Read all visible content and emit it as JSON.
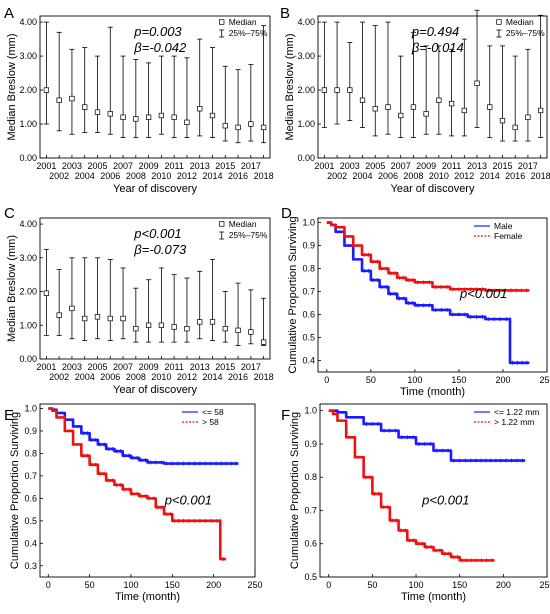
{
  "chart_data": [
    {
      "panel": "A",
      "type": "box-errorbar",
      "ylabel": "Median Breslow (mm)",
      "xlabel": "Year of discovery",
      "ylim": [
        0,
        4.0
      ],
      "yticks": [
        "0.00",
        "1.00",
        "2.00",
        "3.00",
        "4.00"
      ],
      "categories": [
        "2001",
        "2002",
        "2003",
        "2004",
        "2005",
        "2006",
        "2007",
        "2008",
        "2009",
        "2010",
        "2011",
        "2012",
        "2013",
        "2014",
        "2015",
        "2016",
        "2017",
        "2018"
      ],
      "median": [
        2.0,
        1.7,
        1.75,
        1.5,
        1.35,
        1.3,
        1.2,
        1.15,
        1.2,
        1.25,
        1.2,
        1.05,
        1.45,
        1.25,
        0.95,
        0.9,
        1.0,
        0.9
      ],
      "q25": [
        1.0,
        0.8,
        0.7,
        0.75,
        0.75,
        0.7,
        0.6,
        0.6,
        0.6,
        0.7,
        0.6,
        0.6,
        0.65,
        0.6,
        0.5,
        0.45,
        0.5,
        0.45
      ],
      "q75": [
        4.0,
        3.7,
        3.2,
        3.25,
        3.0,
        3.85,
        3.0,
        2.9,
        2.8,
        3.0,
        3.0,
        2.95,
        3.5,
        3.25,
        2.7,
        2.6,
        2.75,
        3.9
      ],
      "stats": [
        "p=0.003",
        "β=-0.042"
      ],
      "legend": [
        "Median",
        "25%–75%"
      ]
    },
    {
      "panel": "B",
      "type": "box-errorbar",
      "ylabel": "Median Breslow (mm)",
      "xlabel": "Year of discovery",
      "ylim": [
        0,
        4.0
      ],
      "yticks": [
        "0.00",
        "1.00",
        "2.00",
        "3.00",
        "4.00"
      ],
      "categories": [
        "2001",
        "2002",
        "2003",
        "2004",
        "2005",
        "2006",
        "2007",
        "2008",
        "2009",
        "2010",
        "2011",
        "2012",
        "2013",
        "2014",
        "2015",
        "2016",
        "2017",
        "2018"
      ],
      "median": [
        2.0,
        2.0,
        2.0,
        1.7,
        1.45,
        1.5,
        1.25,
        1.5,
        1.3,
        1.7,
        1.6,
        1.4,
        2.2,
        1.5,
        1.1,
        0.9,
        1.2,
        1.4
      ],
      "q25": [
        0.9,
        1.0,
        1.1,
        0.9,
        0.65,
        0.7,
        0.6,
        0.6,
        0.7,
        0.7,
        0.65,
        0.65,
        0.9,
        0.6,
        0.5,
        0.5,
        0.5,
        0.6
      ],
      "q75": [
        4.0,
        4.0,
        3.4,
        4.0,
        3.9,
        4.0,
        3.0,
        3.7,
        3.3,
        3.3,
        3.2,
        3.5,
        4.35,
        3.3,
        3.3,
        3.0,
        3.2,
        4.2
      ],
      "stats": [
        "p=0.494",
        "β=-0.014"
      ],
      "legend": [
        "Median",
        "25%–75%"
      ]
    },
    {
      "panel": "C",
      "type": "box-errorbar",
      "ylabel": "Median Breslow (mm)",
      "xlabel": "Year of discovery",
      "ylim": [
        0,
        4.0
      ],
      "yticks": [
        "0.00",
        "1.00",
        "2.00",
        "3.00",
        "4.00"
      ],
      "categories": [
        "2001",
        "2002",
        "2003",
        "2004",
        "2005",
        "2006",
        "2007",
        "2008",
        "2009",
        "2010",
        "2011",
        "2012",
        "2013",
        "2014",
        "2015",
        "2016",
        "2017",
        "2018"
      ],
      "median": [
        1.95,
        1.3,
        1.5,
        1.2,
        1.25,
        1.2,
        1.2,
        0.9,
        1.0,
        1.0,
        0.95,
        0.9,
        1.1,
        1.1,
        0.9,
        0.85,
        0.8,
        0.5
      ],
      "q25": [
        0.7,
        0.7,
        0.6,
        0.55,
        0.6,
        0.55,
        0.6,
        0.5,
        0.5,
        0.5,
        0.5,
        0.5,
        0.6,
        0.55,
        0.5,
        0.4,
        0.45,
        0.4
      ],
      "q75": [
        3.25,
        2.65,
        3.0,
        3.0,
        3.0,
        2.95,
        2.7,
        2.1,
        2.35,
        2.7,
        2.5,
        2.4,
        2.6,
        2.95,
        2.0,
        2.25,
        2.05,
        1.8
      ],
      "stats": [
        "p<0.001",
        "β=-0.073"
      ],
      "legend": [
        "Median",
        "25%–75%"
      ]
    },
    {
      "panel": "D",
      "type": "line",
      "ylabel": "Cumulative Proportion Surviving",
      "xlabel": "Time (month)",
      "xlim": [
        -10,
        250
      ],
      "ylim": [
        0.35,
        1.02
      ],
      "xticks": [
        "0",
        "50",
        "100",
        "150",
        "200",
        "250"
      ],
      "yticks": [
        "0.4",
        "0.5",
        "0.6",
        "0.7",
        "0.8",
        "0.9",
        "1.0"
      ],
      "stats": [
        "p<0.001"
      ],
      "series": [
        {
          "name": "Male",
          "color": "#1a1aff",
          "x": [
            0,
            5,
            10,
            20,
            30,
            40,
            50,
            60,
            70,
            80,
            90,
            100,
            120,
            140,
            160,
            180,
            200,
            208,
            208,
            230
          ],
          "y": [
            1.0,
            0.99,
            0.96,
            0.9,
            0.84,
            0.79,
            0.75,
            0.72,
            0.69,
            0.67,
            0.65,
            0.64,
            0.62,
            0.6,
            0.59,
            0.58,
            0.58,
            0.58,
            0.39,
            0.39
          ]
        },
        {
          "name": "Female",
          "color": "#ee1111",
          "x": [
            0,
            5,
            10,
            20,
            30,
            40,
            50,
            60,
            70,
            80,
            90,
            100,
            120,
            140,
            160,
            180,
            200,
            230
          ],
          "y": [
            1.0,
            0.99,
            0.98,
            0.94,
            0.9,
            0.86,
            0.83,
            0.8,
            0.78,
            0.76,
            0.75,
            0.74,
            0.72,
            0.71,
            0.71,
            0.705,
            0.705,
            0.705
          ]
        }
      ]
    },
    {
      "panel": "E",
      "type": "line",
      "ylabel": "Cumulative Proportion Surviving",
      "xlabel": "Time (month)",
      "xlim": [
        -10,
        250
      ],
      "ylim": [
        0.25,
        1.02
      ],
      "xticks": [
        "0",
        "50",
        "100",
        "150",
        "200",
        "250"
      ],
      "yticks": [
        "0.3",
        "0.4",
        "0.5",
        "0.6",
        "0.7",
        "0.8",
        "0.9",
        "1.0"
      ],
      "stats": [
        "p<0.001"
      ],
      "series": [
        {
          "name": "<= 58",
          "color": "#1a1aff",
          "x": [
            0,
            5,
            10,
            20,
            30,
            40,
            50,
            60,
            70,
            80,
            90,
            100,
            110,
            120,
            140,
            160,
            180,
            200,
            230
          ],
          "y": [
            1.0,
            0.995,
            0.98,
            0.95,
            0.92,
            0.89,
            0.86,
            0.84,
            0.82,
            0.81,
            0.79,
            0.78,
            0.77,
            0.76,
            0.755,
            0.755,
            0.755,
            0.755,
            0.755
          ]
        },
        {
          "name": "> 58",
          "color": "#ee1111",
          "x": [
            0,
            5,
            10,
            20,
            30,
            40,
            50,
            60,
            70,
            80,
            90,
            100,
            110,
            120,
            130,
            140,
            150,
            160,
            180,
            200,
            208,
            208,
            215
          ],
          "y": [
            1.0,
            0.99,
            0.96,
            0.9,
            0.84,
            0.79,
            0.75,
            0.71,
            0.68,
            0.66,
            0.64,
            0.62,
            0.61,
            0.6,
            0.56,
            0.53,
            0.5,
            0.5,
            0.5,
            0.5,
            0.5,
            0.33,
            0.33
          ]
        }
      ]
    },
    {
      "panel": "F",
      "type": "line",
      "ylabel": "Cumulative Proportion Surviving",
      "xlabel": "Time (month)",
      "xlim": [
        -10,
        250
      ],
      "ylim": [
        0.5,
        1.02
      ],
      "xticks": [
        "0",
        "50",
        "100",
        "150",
        "200",
        "250"
      ],
      "yticks": [
        "0.5",
        "0.6",
        "0.7",
        "0.8",
        "0.9",
        "1.0"
      ],
      "stats": [
        "p<0.001"
      ],
      "series": [
        {
          "name": "<= 1.22 mm",
          "color": "#1a1aff",
          "x": [
            0,
            10,
            20,
            40,
            60,
            80,
            100,
            120,
            140,
            160,
            200,
            225
          ],
          "y": [
            1.0,
            0.995,
            0.98,
            0.96,
            0.94,
            0.92,
            0.9,
            0.88,
            0.85,
            0.85,
            0.85,
            0.85
          ]
        },
        {
          "name": "> 1.22 mm",
          "color": "#ee1111",
          "x": [
            0,
            5,
            10,
            20,
            30,
            40,
            50,
            60,
            70,
            80,
            90,
            100,
            110,
            120,
            130,
            140,
            150,
            160,
            190
          ],
          "y": [
            1.0,
            0.99,
            0.97,
            0.92,
            0.86,
            0.8,
            0.75,
            0.71,
            0.67,
            0.64,
            0.61,
            0.6,
            0.59,
            0.58,
            0.57,
            0.56,
            0.55,
            0.55,
            0.55
          ]
        }
      ]
    }
  ]
}
